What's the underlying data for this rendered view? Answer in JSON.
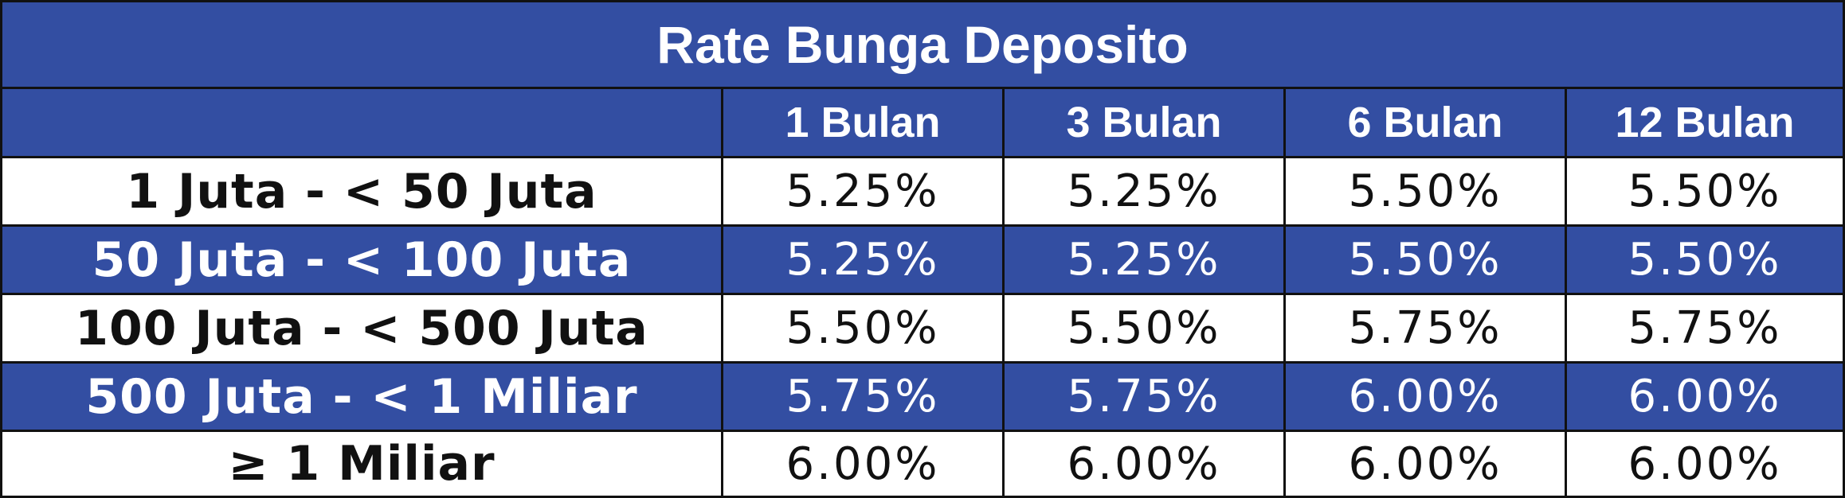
{
  "table": {
    "title": "Rate Bunga Deposito",
    "header": {
      "tier": "",
      "terms": [
        "1 Bulan",
        "3 Bulan",
        "6 Bulan",
        "12 Bulan"
      ]
    },
    "rows": [
      {
        "tier": "1 Juta - < 50 Juta",
        "rates": [
          "5.25%",
          "5.25%",
          "5.50%",
          "5.50%"
        ]
      },
      {
        "tier": "50 Juta - < 100 Juta",
        "rates": [
          "5.25%",
          "5.25%",
          "5.50%",
          "5.50%"
        ]
      },
      {
        "tier": "100 Juta - < 500 Juta",
        "rates": [
          "5.50%",
          "5.50%",
          "5.75%",
          "5.75%"
        ]
      },
      {
        "tier": "500 Juta - < 1 Miliar",
        "rates": [
          "5.75%",
          "5.75%",
          "6.00%",
          "6.00%"
        ]
      },
      {
        "tier": "≥ 1 Miliar",
        "rates": [
          "6.00%",
          "6.00%",
          "6.00%",
          "6.00%"
        ]
      }
    ]
  },
  "colors": {
    "header_blue": "#334ea2",
    "row_white": "#ffffff",
    "border": "#111111"
  }
}
